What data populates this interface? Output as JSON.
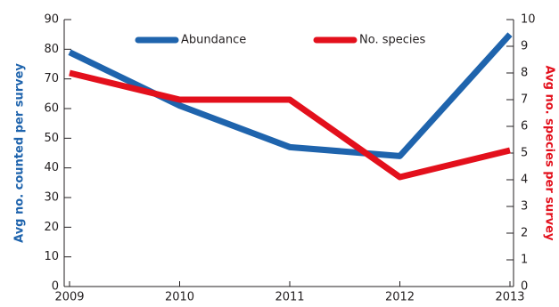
{
  "chart_data": {
    "type": "line",
    "x": [
      2009,
      2010,
      2011,
      2012,
      2013
    ],
    "xlim": [
      2009,
      2013
    ],
    "xticks": [
      2009,
      2010,
      2011,
      2012,
      2013
    ],
    "ylabel": "Avg no. counted per survey",
    "y2label": "Avg no. species per survey",
    "ylim": [
      0,
      90
    ],
    "yticks": [
      0,
      10,
      20,
      30,
      40,
      50,
      60,
      70,
      80,
      90
    ],
    "y2lim": [
      0,
      10
    ],
    "y2ticks": [
      0,
      1,
      2,
      3,
      4,
      5,
      6,
      7,
      8,
      9,
      10
    ],
    "series": [
      {
        "name": "Abundance",
        "color": "#1f64ad",
        "values": [
          79,
          61,
          47,
          44,
          85
        ]
      },
      {
        "name": "No. species",
        "color": "#e3101c",
        "axis": "y2",
        "values": [
          8.0,
          7.0,
          7.0,
          4.1,
          5.1
        ]
      }
    ]
  }
}
